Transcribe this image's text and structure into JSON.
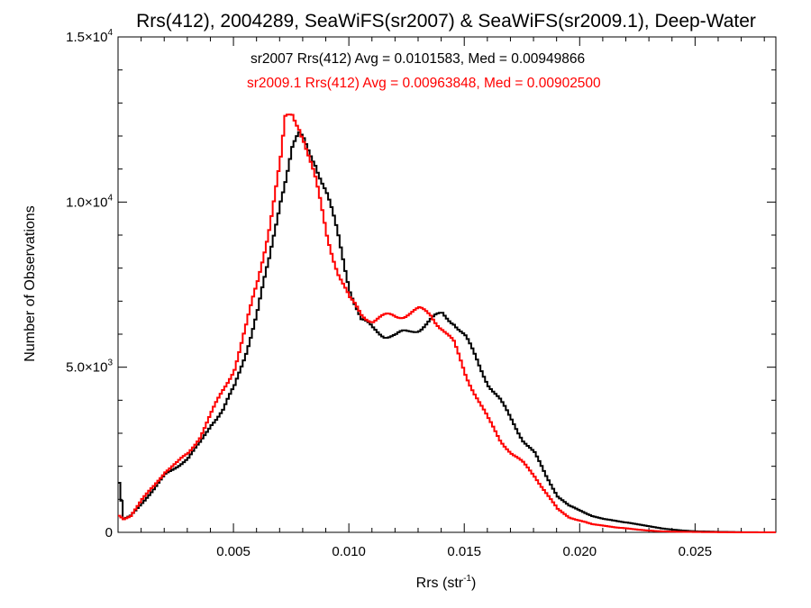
{
  "chart_data": {
    "type": "line",
    "title": "Rrs(412), 2004289, SeaWiFS(sr2007) & SeaWiFS(sr2009.1), Deep-Water",
    "xlabel": "Rrs (str",
    "xlabel_sup": "-1",
    "xlabel_tail": ")",
    "ylabel": "Number of Observations",
    "xlim": [
      0.0,
      0.0285
    ],
    "ylim": [
      0,
      15000
    ],
    "x_ticks": [
      0.005,
      0.01,
      0.015,
      0.02,
      0.025
    ],
    "x_tick_labels": [
      "0.005",
      "0.010",
      "0.015",
      "0.020",
      "0.025"
    ],
    "y_ticks": [
      {
        "value": 0,
        "mantissa": "0",
        "exp": ""
      },
      {
        "value": 5000,
        "mantissa": "5.0×10",
        "exp": "3"
      },
      {
        "value": 10000,
        "mantissa": "1.0×10",
        "exp": "4"
      },
      {
        "value": 15000,
        "mantissa": "1.5×10",
        "exp": "4"
      }
    ],
    "annotations": [
      {
        "text": "sr2007 Rrs(412) Avg = 0.0101583, Med = 0.00949866",
        "color": "#000000"
      },
      {
        "text": "sr2009.1 Rrs(412) Avg = 0.00963848, Med = 0.00902500",
        "color": "#ff0000"
      }
    ],
    "series": [
      {
        "color": "#000000",
        "x": [
          0.0,
          0.0002,
          0.0005,
          0.001,
          0.0015,
          0.002,
          0.0025,
          0.003,
          0.0035,
          0.004,
          0.0045,
          0.005,
          0.0055,
          0.006,
          0.0065,
          0.007,
          0.0075,
          0.0078,
          0.008,
          0.0085,
          0.009,
          0.0095,
          0.01,
          0.0105,
          0.011,
          0.0115,
          0.012,
          0.0125,
          0.013,
          0.0135,
          0.014,
          0.0145,
          0.015,
          0.0155,
          0.016,
          0.0165,
          0.017,
          0.0175,
          0.018,
          0.0185,
          0.019,
          0.0195,
          0.02,
          0.0205,
          0.021,
          0.0215,
          0.022,
          0.0225,
          0.023,
          0.0235,
          0.024,
          0.0245,
          0.025,
          0.026,
          0.027,
          0.028
        ],
        "y": [
          1500,
          400,
          500,
          900,
          1300,
          1750,
          2000,
          2250,
          2700,
          3300,
          3700,
          4400,
          5500,
          6700,
          8200,
          10200,
          11600,
          11900,
          11800,
          11300,
          10200,
          8900,
          7400,
          6400,
          6150,
          6000,
          5950,
          6050,
          6200,
          6400,
          6600,
          6400,
          5900,
          5200,
          4500,
          4000,
          3400,
          2800,
          2400,
          1700,
          1100,
          800,
          650,
          500,
          400,
          350,
          300,
          240,
          180,
          120,
          80,
          50,
          30,
          15,
          5,
          0
        ]
      },
      {
        "color": "#ff0000",
        "x": [
          0.0,
          0.0002,
          0.0005,
          0.001,
          0.0015,
          0.002,
          0.0025,
          0.003,
          0.0035,
          0.004,
          0.0045,
          0.005,
          0.0055,
          0.006,
          0.0065,
          0.007,
          0.0072,
          0.0075,
          0.0078,
          0.008,
          0.0085,
          0.009,
          0.0095,
          0.01,
          0.0105,
          0.011,
          0.0115,
          0.012,
          0.0125,
          0.013,
          0.0135,
          0.014,
          0.0145,
          0.015,
          0.0155,
          0.016,
          0.0165,
          0.017,
          0.0175,
          0.018,
          0.0185,
          0.019,
          0.0195,
          0.02,
          0.0205,
          0.021,
          0.0215,
          0.022,
          0.0225,
          0.023,
          0.0235,
          0.024,
          0.025,
          0.026,
          0.027,
          0.028
        ],
        "y": [
          500,
          400,
          500,
          1000,
          1400,
          1850,
          2100,
          2400,
          2900,
          3600,
          4300,
          5000,
          6200,
          7600,
          9300,
          11200,
          12400,
          12650,
          12400,
          12000,
          10600,
          9000,
          7900,
          7000,
          6600,
          6450,
          6500,
          6550,
          6650,
          6700,
          6600,
          6200,
          5700,
          4800,
          4100,
          3400,
          2800,
          2400,
          2100,
          1700,
          1200,
          700,
          450,
          350,
          250,
          200,
          150,
          120,
          80,
          50,
          30,
          20,
          10,
          5,
          0,
          0
        ]
      }
    ]
  }
}
